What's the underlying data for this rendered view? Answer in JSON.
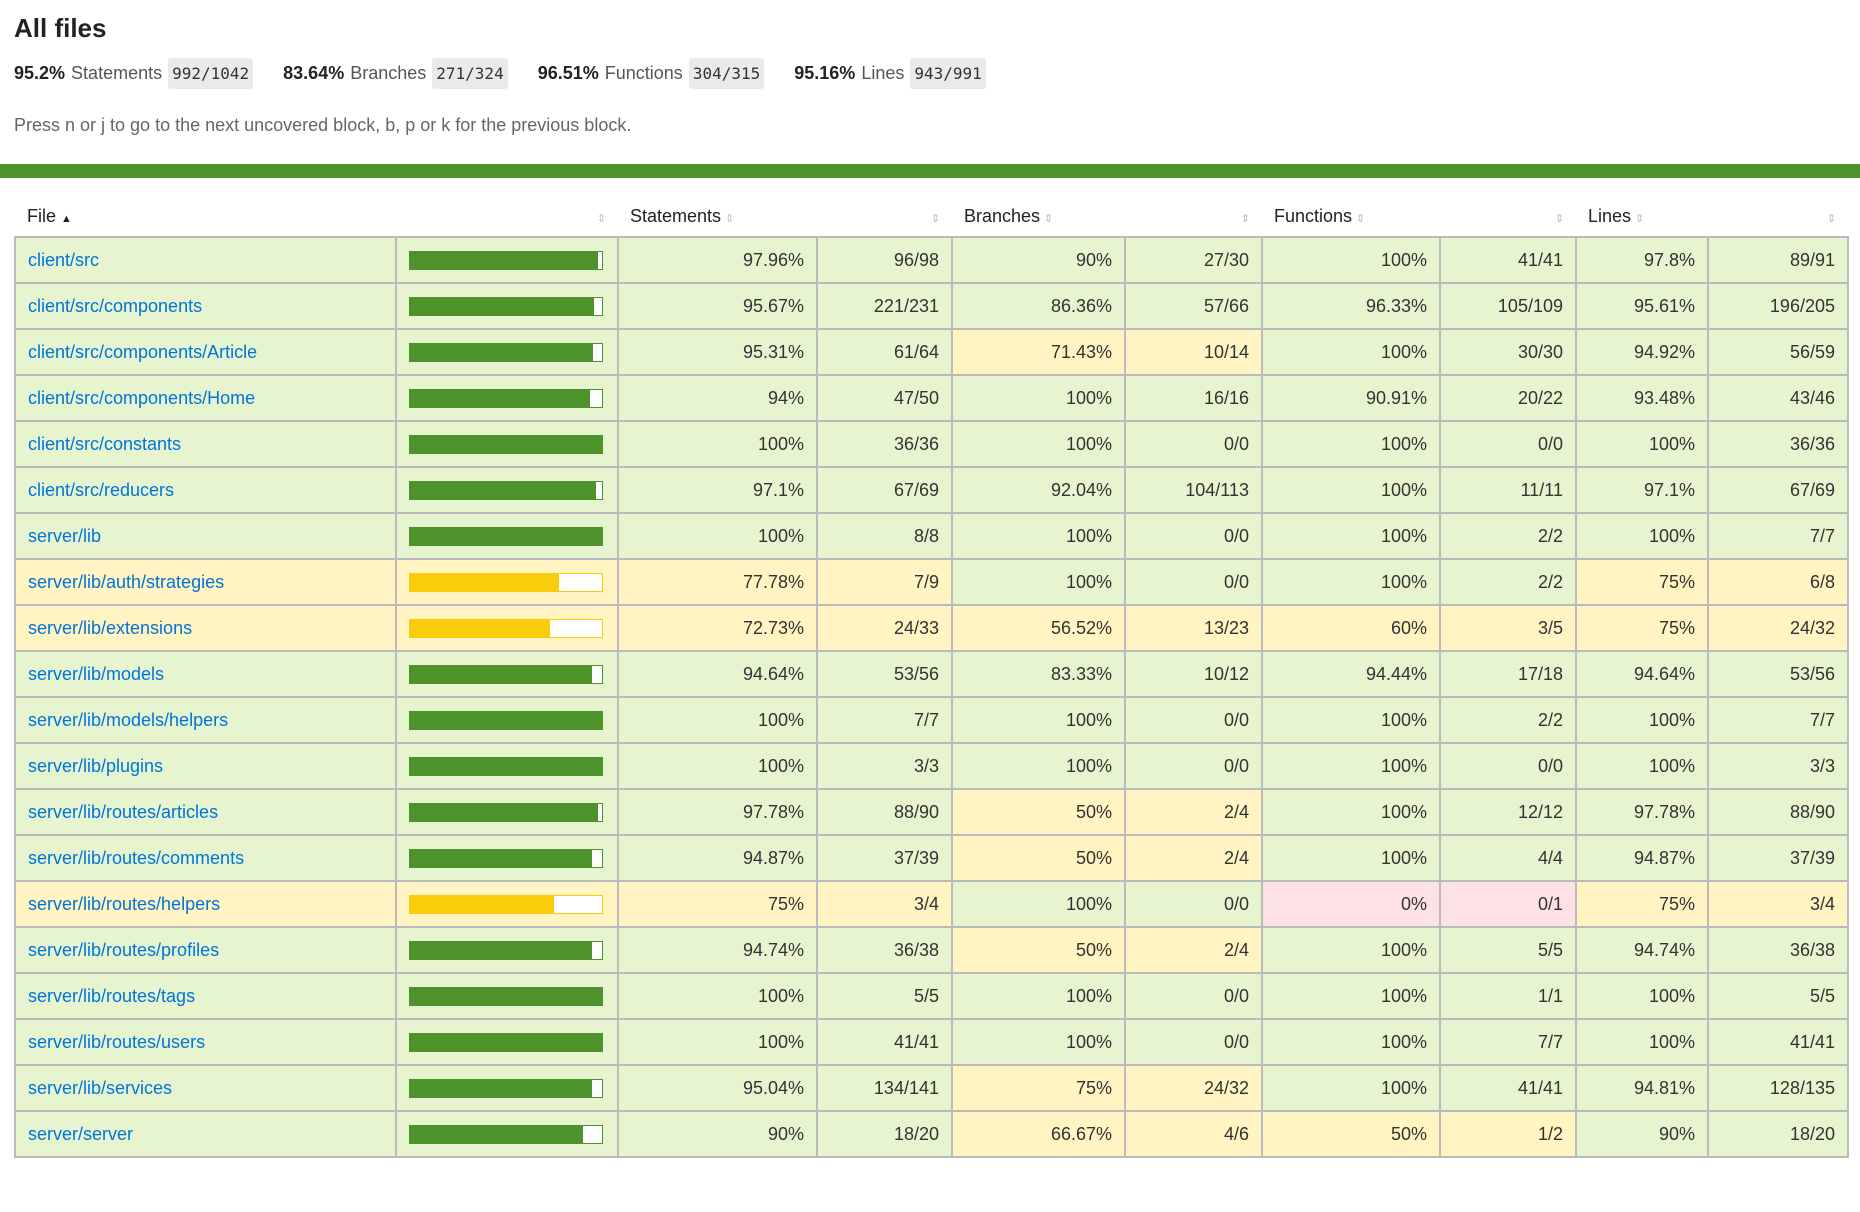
{
  "title": "All files",
  "summary": [
    {
      "pct": "95.2%",
      "label": "Statements",
      "frac": "992/1042"
    },
    {
      "pct": "83.64%",
      "label": "Branches",
      "frac": "271/324"
    },
    {
      "pct": "96.51%",
      "label": "Functions",
      "frac": "304/315"
    },
    {
      "pct": "95.16%",
      "label": "Lines",
      "frac": "943/991"
    }
  ],
  "hint": "Press n or j to go to the next uncovered block, b, p or k for the previous block.",
  "colors": {
    "high": "#e6f5d0",
    "medium": "#fff4c2",
    "low": "#fce1e5",
    "bar_green": "#4d922a",
    "bar_yellow": "#f9cd0b"
  },
  "headers": {
    "file": "File",
    "file_sort": "▲",
    "sort": "⇕",
    "statements": "Statements",
    "branches": "Branches",
    "functions": "Functions",
    "lines": "Lines"
  },
  "rows": [
    [
      "client/src",
      "97.96%",
      "96/98",
      "90%",
      "27/30",
      "100%",
      "41/41",
      "97.8%",
      "89/91"
    ],
    [
      "client/src/components",
      "95.67%",
      "221/231",
      "86.36%",
      "57/66",
      "96.33%",
      "105/109",
      "95.61%",
      "196/205"
    ],
    [
      "client/src/components/Article",
      "95.31%",
      "61/64",
      "71.43%",
      "10/14",
      "100%",
      "30/30",
      "94.92%",
      "56/59"
    ],
    [
      "client/src/components/Home",
      "94%",
      "47/50",
      "100%",
      "16/16",
      "90.91%",
      "20/22",
      "93.48%",
      "43/46"
    ],
    [
      "client/src/constants",
      "100%",
      "36/36",
      "100%",
      "0/0",
      "100%",
      "0/0",
      "100%",
      "36/36"
    ],
    [
      "client/src/reducers",
      "97.1%",
      "67/69",
      "92.04%",
      "104/113",
      "100%",
      "11/11",
      "97.1%",
      "67/69"
    ],
    [
      "server/lib",
      "100%",
      "8/8",
      "100%",
      "0/0",
      "100%",
      "2/2",
      "100%",
      "7/7"
    ],
    [
      "server/lib/auth/strategies",
      "77.78%",
      "7/9",
      "100%",
      "0/0",
      "100%",
      "2/2",
      "75%",
      "6/8"
    ],
    [
      "server/lib/extensions",
      "72.73%",
      "24/33",
      "56.52%",
      "13/23",
      "60%",
      "3/5",
      "75%",
      "24/32"
    ],
    [
      "server/lib/models",
      "94.64%",
      "53/56",
      "83.33%",
      "10/12",
      "94.44%",
      "17/18",
      "94.64%",
      "53/56"
    ],
    [
      "server/lib/models/helpers",
      "100%",
      "7/7",
      "100%",
      "0/0",
      "100%",
      "2/2",
      "100%",
      "7/7"
    ],
    [
      "server/lib/plugins",
      "100%",
      "3/3",
      "100%",
      "0/0",
      "100%",
      "0/0",
      "100%",
      "3/3"
    ],
    [
      "server/lib/routes/articles",
      "97.78%",
      "88/90",
      "50%",
      "2/4",
      "100%",
      "12/12",
      "97.78%",
      "88/90"
    ],
    [
      "server/lib/routes/comments",
      "94.87%",
      "37/39",
      "50%",
      "2/4",
      "100%",
      "4/4",
      "94.87%",
      "37/39"
    ],
    [
      "server/lib/routes/helpers",
      "75%",
      "3/4",
      "100%",
      "0/0",
      "0%",
      "0/1",
      "75%",
      "3/4"
    ],
    [
      "server/lib/routes/profiles",
      "94.74%",
      "36/38",
      "50%",
      "2/4",
      "100%",
      "5/5",
      "94.74%",
      "36/38"
    ],
    [
      "server/lib/routes/tags",
      "100%",
      "5/5",
      "100%",
      "0/0",
      "100%",
      "1/1",
      "100%",
      "5/5"
    ],
    [
      "server/lib/routes/users",
      "100%",
      "41/41",
      "100%",
      "0/0",
      "100%",
      "7/7",
      "100%",
      "41/41"
    ],
    [
      "server/lib/services",
      "95.04%",
      "134/141",
      "75%",
      "24/32",
      "100%",
      "41/41",
      "94.81%",
      "128/135"
    ],
    [
      "server/server",
      "90%",
      "18/20",
      "66.67%",
      "4/6",
      "50%",
      "1/2",
      "90%",
      "18/20"
    ]
  ]
}
